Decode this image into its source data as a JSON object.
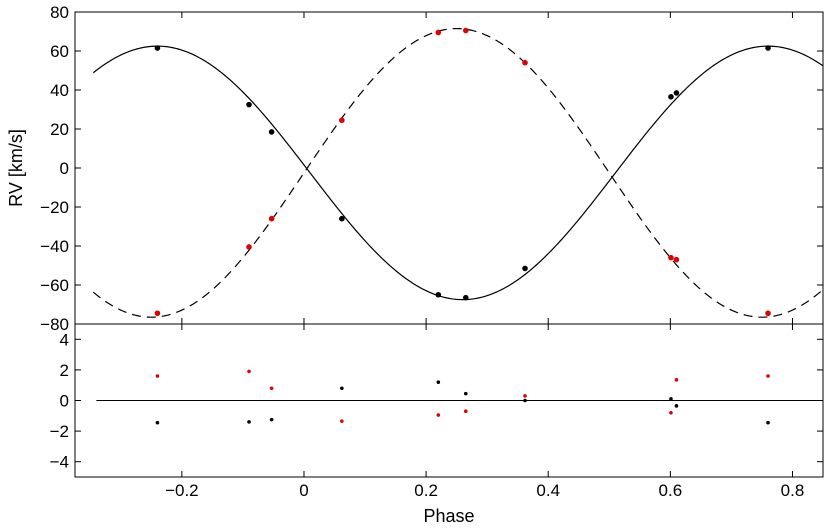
{
  "chart_data": [
    {
      "type": "scatter",
      "panel": "radial-velocity",
      "ylabel": "RV [km/s]",
      "xlim": [
        -0.375,
        0.85
      ],
      "ylim": [
        -80,
        80
      ],
      "xticks": [
        -0.2,
        0,
        0.2,
        0.4,
        0.6,
        0.8
      ],
      "xtick_labels": [],
      "yticks": [
        -80,
        -60,
        -40,
        -20,
        0,
        20,
        40,
        60,
        80
      ],
      "ytick_labels": [
        "−80",
        "−60",
        "−40",
        "−20",
        "0",
        "20",
        "40",
        "60",
        "80"
      ],
      "grid": false,
      "series": [
        {
          "color": "#000000",
          "marker": "dot",
          "points": [
            {
              "x": -0.24,
              "y": 61.5
            },
            {
              "x": -0.09,
              "y": 32.5
            },
            {
              "x": -0.053,
              "y": 18.5
            },
            {
              "x": 0.062,
              "y": -26.0
            },
            {
              "x": 0.22,
              "y": -65.0
            },
            {
              "x": 0.265,
              "y": -66.5
            },
            {
              "x": 0.362,
              "y": -51.5
            },
            {
              "x": 0.601,
              "y": 36.5
            },
            {
              "x": 0.61,
              "y": 38.5
            },
            {
              "x": 0.76,
              "y": 61.5
            }
          ]
        },
        {
          "color": "#e00000",
          "marker": "dot",
          "points": [
            {
              "x": -0.24,
              "y": -74.5
            },
            {
              "x": -0.09,
              "y": -40.5
            },
            {
              "x": -0.053,
              "y": -26.0
            },
            {
              "x": 0.062,
              "y": 24.5
            },
            {
              "x": 0.22,
              "y": 69.5
            },
            {
              "x": 0.265,
              "y": 70.5
            },
            {
              "x": 0.362,
              "y": 54.0
            },
            {
              "x": 0.601,
              "y": -46.0
            },
            {
              "x": 0.61,
              "y": -47.0
            },
            {
              "x": 0.76,
              "y": -74.5
            }
          ]
        }
      ],
      "curves": [
        {
          "style": "solid",
          "color": "#000000",
          "function": "sinusoid",
          "gamma": -2.5,
          "semi_amplitude": 65.0,
          "phase_of_maximum": -0.24
        },
        {
          "style": "dashed",
          "color": "#000000",
          "function": "sinusoid",
          "gamma": -2.5,
          "semi_amplitude": 74.0,
          "phase_of_maximum": 0.25
        }
      ]
    },
    {
      "type": "scatter",
      "panel": "residuals",
      "xlabel": "Phase",
      "xlim": [
        -0.375,
        0.85
      ],
      "ylim": [
        -5,
        5
      ],
      "xticks": [
        -0.2,
        0,
        0.2,
        0.4,
        0.6,
        0.8
      ],
      "xtick_labels": [
        "−0.2",
        "0",
        "0.2",
        "0.4",
        "0.6",
        "0.8"
      ],
      "yticks": [
        -4,
        -2,
        0,
        2,
        4
      ],
      "ytick_labels": [
        "−4",
        "−2",
        "0",
        "2",
        "4"
      ],
      "grid": false,
      "zero_line": {
        "y": 0,
        "x_from": -0.34,
        "x_to": 0.85,
        "color": "#000000"
      },
      "series": [
        {
          "color": "#000000",
          "marker": "dot",
          "points": [
            {
              "x": -0.24,
              "y": -1.45
            },
            {
              "x": -0.09,
              "y": -1.4
            },
            {
              "x": -0.053,
              "y": -1.25
            },
            {
              "x": 0.062,
              "y": 0.8
            },
            {
              "x": 0.22,
              "y": 1.2
            },
            {
              "x": 0.265,
              "y": 0.45
            },
            {
              "x": 0.362,
              "y": 0.0
            },
            {
              "x": 0.601,
              "y": 0.1
            },
            {
              "x": 0.61,
              "y": -0.35
            },
            {
              "x": 0.76,
              "y": -1.45
            }
          ]
        },
        {
          "color": "#e00000",
          "marker": "dot",
          "points": [
            {
              "x": -0.24,
              "y": 1.6
            },
            {
              "x": -0.09,
              "y": 1.9
            },
            {
              "x": -0.053,
              "y": 0.8
            },
            {
              "x": 0.062,
              "y": -1.35
            },
            {
              "x": 0.22,
              "y": -0.95
            },
            {
              "x": 0.265,
              "y": -0.7
            },
            {
              "x": 0.362,
              "y": 0.3
            },
            {
              "x": 0.601,
              "y": -0.8
            },
            {
              "x": 0.61,
              "y": 1.35
            },
            {
              "x": 0.76,
              "y": 1.6
            }
          ]
        }
      ]
    }
  ]
}
